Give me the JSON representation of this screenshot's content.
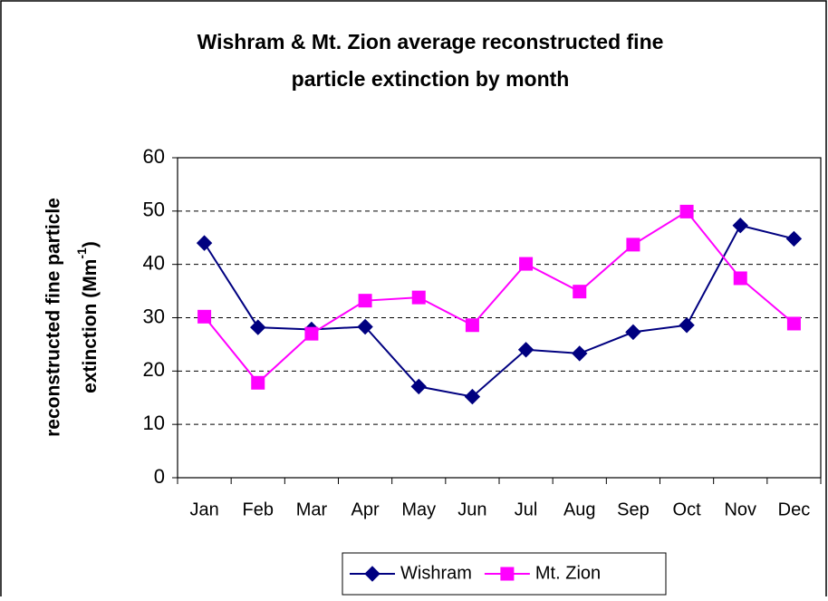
{
  "chart_data": {
    "type": "line",
    "title": [
      "Wishram & Mt. Zion average reconstructed fine",
      "particle extinction by month"
    ],
    "ylabel": [
      "reconstructed fine particle",
      "extinction (Mm"
    ],
    "ylabel_superscript": "-1",
    "ylabel_suffix": ")",
    "categories": [
      "Jan",
      "Feb",
      "Mar",
      "Apr",
      "May",
      "Jun",
      "Jul",
      "Aug",
      "Sep",
      "Oct",
      "Nov",
      "Dec"
    ],
    "series": [
      {
        "name": "Wishram",
        "color": "#000080",
        "marker": "diamond",
        "values": [
          44,
          28.2,
          27.8,
          28.3,
          17.1,
          15.2,
          24,
          23.3,
          27.3,
          28.6,
          47.3,
          44.8
        ]
      },
      {
        "name": "Mt. Zion",
        "color": "#ff00ff",
        "marker": "square",
        "values": [
          30.2,
          17.8,
          27,
          33.2,
          33.8,
          28.6,
          40.1,
          34.9,
          43.7,
          49.9,
          37.4,
          28.9
        ]
      }
    ],
    "ylim": [
      0,
      60
    ],
    "yticks": [
      0,
      10,
      20,
      30,
      40,
      50,
      60
    ],
    "grid": true,
    "legend": "bottom"
  }
}
